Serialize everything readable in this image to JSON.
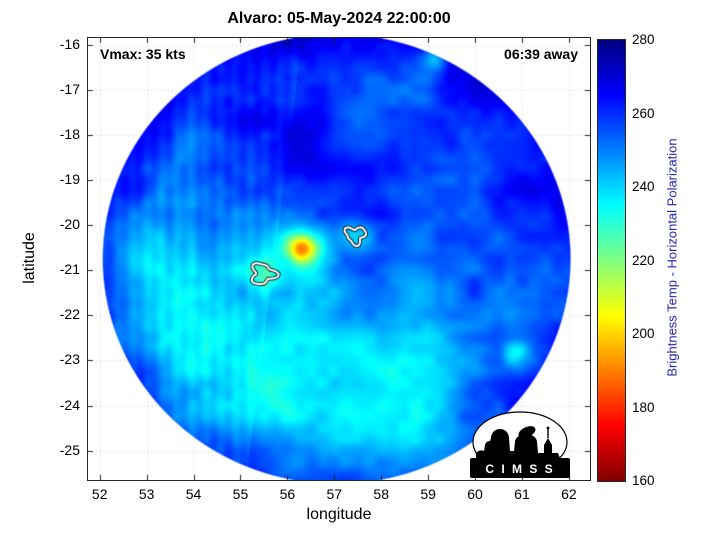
{
  "page": {
    "background": "#ffffff"
  },
  "colors": {
    "colorbar_label_text": "#2525b5",
    "contour_line": "#ffffff",
    "contour_outline": "#000000",
    "axis_box": "#262626"
  },
  "logo": {
    "text": "C I M S S"
  },
  "chart_data": {
    "type": "heatmap",
    "title": "Alvaro: 05-May-2024 22:00:00",
    "xlabel": "longitude",
    "ylabel": "latitude",
    "xlim": [
      51.75,
      62.45
    ],
    "ylim": [
      -25.65,
      -15.85
    ],
    "xticks": [
      52,
      53,
      54,
      55,
      56,
      57,
      58,
      59,
      60,
      61,
      62
    ],
    "yticks": [
      -16,
      -17,
      -18,
      -19,
      -20,
      -21,
      -22,
      -23,
      -24,
      -25
    ],
    "grid": true,
    "annotations": [
      {
        "text": "Vmax: 35 kts",
        "corner": "top-left"
      },
      {
        "text": "06:39 away",
        "corner": "top-right"
      }
    ],
    "colorbar": {
      "label": "Brightness Temp - Horizontal Polarization",
      "min": 160,
      "max": 280,
      "ticks": [
        160,
        180,
        200,
        220,
        240,
        260,
        280
      ],
      "colormap": "reversed-jet",
      "stops": [
        {
          "f": 0.0,
          "color": "#800000"
        },
        {
          "f": 0.125,
          "color": "#ff0000"
        },
        {
          "f": 0.375,
          "color": "#ffff00"
        },
        {
          "f": 0.625,
          "color": "#00ffff"
        },
        {
          "f": 0.875,
          "color": "#0000ff"
        },
        {
          "f": 1.0,
          "color": "#000080"
        }
      ]
    },
    "swath": {
      "center_lon": 57.05,
      "center_lat": -20.75,
      "radius_deg": 5.0,
      "base_temp_k": 252,
      "noise_amp_k": 13,
      "edge_temp_boost_k": 9
    },
    "features": [
      [
        56.32,
        -20.52,
        0.22,
        -42
      ],
      [
        56.25,
        -20.62,
        0.45,
        -14
      ],
      [
        57.45,
        -20.22,
        0.28,
        -20
      ],
      [
        55.48,
        -21.08,
        0.3,
        -14
      ],
      [
        54.15,
        -21.35,
        1.15,
        -9
      ],
      [
        53.7,
        -22.4,
        0.85,
        -7
      ],
      [
        56.35,
        -22.95,
        0.95,
        -9
      ],
      [
        55.8,
        -23.5,
        0.65,
        -8
      ],
      [
        57.3,
        -21.9,
        0.8,
        -6
      ],
      [
        58.9,
        -23.3,
        1.1,
        -5
      ],
      [
        60.88,
        -22.85,
        0.22,
        -18
      ],
      [
        59.15,
        -16.3,
        0.18,
        -20
      ],
      [
        54.6,
        -17.6,
        1.4,
        7
      ],
      [
        56.9,
        -18.2,
        1.3,
        5
      ],
      [
        60.3,
        -19.3,
        1.1,
        6
      ],
      [
        58.6,
        -21.0,
        0.9,
        4
      ],
      [
        53.1,
        -20.2,
        0.7,
        -6
      ],
      [
        57.9,
        -24.3,
        0.9,
        -5
      ]
    ],
    "contours": [
      {
        "lon": 57.45,
        "lat": -20.22,
        "r_deg": 0.2
      },
      {
        "lon": 55.48,
        "lat": -21.08,
        "r_deg": 0.24
      }
    ]
  }
}
